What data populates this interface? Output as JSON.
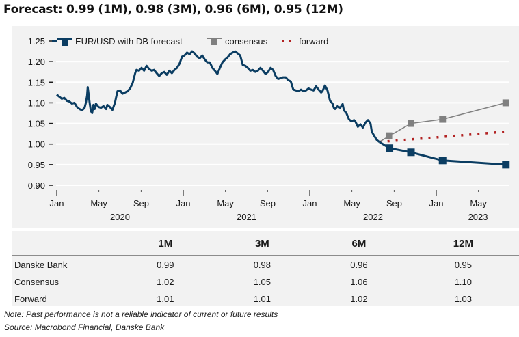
{
  "title": "Forecast: 0.99  (1M), 0.98  (3M), 0.96 (6M), 0.95 (12M)",
  "chart_data": {
    "type": "line",
    "title": "",
    "xlabel": "",
    "ylabel": "",
    "ylim": [
      0.9,
      1.25
    ],
    "yticks": [
      "1.25",
      "1.20",
      "1.15",
      "1.10",
      "1.05",
      "1.00",
      "0.95",
      "0.90"
    ],
    "ytick_values": [
      1.25,
      1.2,
      1.15,
      1.1,
      1.05,
      1.0,
      0.95,
      0.9
    ],
    "xlim": [
      "2020-01",
      "2023-08"
    ],
    "xticks": [
      {
        "label": "Jan",
        "t": 2020.0,
        "major": true
      },
      {
        "label": "May",
        "t": 2020.333,
        "major": false
      },
      {
        "label": "Sep",
        "t": 2020.667,
        "major": false
      },
      {
        "label": "Jan",
        "t": 2021.0,
        "major": true
      },
      {
        "label": "May",
        "t": 2021.333,
        "major": false
      },
      {
        "label": "Sep",
        "t": 2021.667,
        "major": false
      },
      {
        "label": "Jan",
        "t": 2022.0,
        "major": true
      },
      {
        "label": "May",
        "t": 2022.333,
        "major": false
      },
      {
        "label": "Sep",
        "t": 2022.667,
        "major": false
      },
      {
        "label": "Jan",
        "t": 2023.0,
        "major": true
      },
      {
        "label": "May",
        "t": 2023.333,
        "major": false
      }
    ],
    "year_labels": [
      {
        "label": "2020",
        "t": 2020.5
      },
      {
        "label": "2021",
        "t": 2021.5
      },
      {
        "label": "2022",
        "t": 2022.5
      },
      {
        "label": "2023",
        "t": 2023.33
      }
    ],
    "grid": true,
    "legend": {
      "placement": "top-left",
      "entries": [
        {
          "label": "EUR/USD with DB forecast",
          "color": "#0b3d62",
          "style": "line-square"
        },
        {
          "label": "consensus",
          "color": "#808080",
          "style": "line-square"
        },
        {
          "label": "forward",
          "color": "#b22222",
          "style": "dotted"
        }
      ]
    },
    "series": [
      {
        "name": "EUR/USD history",
        "color": "#0b3d62",
        "points": [
          [
            2020.0,
            1.12
          ],
          [
            2020.02,
            1.115
          ],
          [
            2020.04,
            1.11
          ],
          [
            2020.06,
            1.112
          ],
          [
            2020.08,
            1.105
          ],
          [
            2020.1,
            1.103
          ],
          [
            2020.12,
            1.098
          ],
          [
            2020.14,
            1.1
          ],
          [
            2020.16,
            1.09
          ],
          [
            2020.18,
            1.085
          ],
          [
            2020.2,
            1.082
          ],
          [
            2020.22,
            1.088
          ],
          [
            2020.23,
            1.1
          ],
          [
            2020.24,
            1.118
          ],
          [
            2020.245,
            1.138
          ],
          [
            2020.25,
            1.125
          ],
          [
            2020.26,
            1.1
          ],
          [
            2020.27,
            1.08
          ],
          [
            2020.28,
            1.075
          ],
          [
            2020.29,
            1.095
          ],
          [
            2020.3,
            1.085
          ],
          [
            2020.31,
            1.098
          ],
          [
            2020.33,
            1.09
          ],
          [
            2020.35,
            1.088
          ],
          [
            2020.37,
            1.092
          ],
          [
            2020.39,
            1.085
          ],
          [
            2020.4,
            1.095
          ],
          [
            2020.42,
            1.09
          ],
          [
            2020.44,
            1.083
          ],
          [
            2020.46,
            1.1
          ],
          [
            2020.47,
            1.115
          ],
          [
            2020.48,
            1.128
          ],
          [
            2020.5,
            1.13
          ],
          [
            2020.52,
            1.122
          ],
          [
            2020.54,
            1.125
          ],
          [
            2020.56,
            1.128
          ],
          [
            2020.58,
            1.135
          ],
          [
            2020.6,
            1.148
          ],
          [
            2020.62,
            1.172
          ],
          [
            2020.63,
            1.18
          ],
          [
            2020.65,
            1.178
          ],
          [
            2020.67,
            1.185
          ],
          [
            2020.69,
            1.178
          ],
          [
            2020.71,
            1.19
          ],
          [
            2020.73,
            1.182
          ],
          [
            2020.75,
            1.178
          ],
          [
            2020.77,
            1.18
          ],
          [
            2020.79,
            1.172
          ],
          [
            2020.81,
            1.165
          ],
          [
            2020.83,
            1.172
          ],
          [
            2020.85,
            1.175
          ],
          [
            2020.87,
            1.168
          ],
          [
            2020.89,
            1.178
          ],
          [
            2020.91,
            1.172
          ],
          [
            2020.93,
            1.18
          ],
          [
            2020.95,
            1.185
          ],
          [
            2020.97,
            1.195
          ],
          [
            2020.99,
            1.212
          ],
          [
            2021.01,
            1.215
          ],
          [
            2021.03,
            1.222
          ],
          [
            2021.05,
            1.218
          ],
          [
            2021.07,
            1.225
          ],
          [
            2021.09,
            1.22
          ],
          [
            2021.11,
            1.212
          ],
          [
            2021.13,
            1.208
          ],
          [
            2021.15,
            1.215
          ],
          [
            2021.17,
            1.205
          ],
          [
            2021.19,
            1.198
          ],
          [
            2021.21,
            1.198
          ],
          [
            2021.23,
            1.185
          ],
          [
            2021.25,
            1.178
          ],
          [
            2021.27,
            1.17
          ],
          [
            2021.29,
            1.185
          ],
          [
            2021.31,
            1.198
          ],
          [
            2021.33,
            1.205
          ],
          [
            2021.35,
            1.21
          ],
          [
            2021.37,
            1.218
          ],
          [
            2021.39,
            1.222
          ],
          [
            2021.41,
            1.225
          ],
          [
            2021.43,
            1.22
          ],
          [
            2021.45,
            1.215
          ],
          [
            2021.47,
            1.192
          ],
          [
            2021.49,
            1.19
          ],
          [
            2021.51,
            1.185
          ],
          [
            2021.53,
            1.178
          ],
          [
            2021.55,
            1.18
          ],
          [
            2021.57,
            1.175
          ],
          [
            2021.59,
            1.178
          ],
          [
            2021.61,
            1.185
          ],
          [
            2021.63,
            1.178
          ],
          [
            2021.65,
            1.17
          ],
          [
            2021.67,
            1.175
          ],
          [
            2021.69,
            1.185
          ],
          [
            2021.71,
            1.18
          ],
          [
            2021.73,
            1.165
          ],
          [
            2021.75,
            1.158
          ],
          [
            2021.77,
            1.16
          ],
          [
            2021.79,
            1.162
          ],
          [
            2021.81,
            1.162
          ],
          [
            2021.83,
            1.155
          ],
          [
            2021.85,
            1.152
          ],
          [
            2021.87,
            1.132
          ],
          [
            2021.89,
            1.13
          ],
          [
            2021.91,
            1.128
          ],
          [
            2021.93,
            1.132
          ],
          [
            2021.95,
            1.128
          ],
          [
            2021.97,
            1.13
          ],
          [
            2021.99,
            1.135
          ],
          [
            2022.01,
            1.132
          ],
          [
            2022.03,
            1.13
          ],
          [
            2022.05,
            1.14
          ],
          [
            2022.07,
            1.132
          ],
          [
            2022.09,
            1.125
          ],
          [
            2022.1,
            1.128
          ],
          [
            2022.12,
            1.142
          ],
          [
            2022.14,
            1.13
          ],
          [
            2022.16,
            1.105
          ],
          [
            2022.18,
            1.098
          ],
          [
            2022.19,
            1.088
          ],
          [
            2022.2,
            1.085
          ],
          [
            2022.22,
            1.092
          ],
          [
            2022.24,
            1.088
          ],
          [
            2022.26,
            1.097
          ],
          [
            2022.27,
            1.082
          ],
          [
            2022.29,
            1.075
          ],
          [
            2022.31,
            1.06
          ],
          [
            2022.33,
            1.055
          ],
          [
            2022.35,
            1.058
          ],
          [
            2022.36,
            1.055
          ],
          [
            2022.38,
            1.042
          ],
          [
            2022.4,
            1.048
          ],
          [
            2022.42,
            1.04
          ],
          [
            2022.44,
            1.052
          ],
          [
            2022.46,
            1.058
          ],
          [
            2022.48,
            1.05
          ],
          [
            2022.49,
            1.03
          ],
          [
            2022.51,
            1.02
          ],
          [
            2022.53,
            1.01
          ],
          [
            2022.55,
            1.005
          ]
        ]
      },
      {
        "name": "EUR/USD with DB forecast",
        "color": "#0b3d62",
        "categories": [
          "1M",
          "3M",
          "6M",
          "12M"
        ],
        "points": [
          [
            2022.55,
            1.005
          ],
          [
            2022.63,
            0.99
          ],
          [
            2022.8,
            0.98
          ],
          [
            2023.05,
            0.96
          ],
          [
            2023.55,
            0.95
          ]
        ]
      },
      {
        "name": "consensus",
        "color": "#808080",
        "categories": [
          "1M",
          "3M",
          "6M",
          "12M"
        ],
        "points": [
          [
            2022.55,
            1.005
          ],
          [
            2022.63,
            1.02
          ],
          [
            2022.8,
            1.05
          ],
          [
            2023.05,
            1.06
          ],
          [
            2023.55,
            1.1
          ]
        ]
      },
      {
        "name": "forward",
        "color": "#b22222",
        "points": [
          [
            2022.55,
            1.005
          ],
          [
            2023.55,
            1.03
          ]
        ]
      }
    ]
  },
  "table": {
    "headers": [
      "",
      "1M",
      "3M",
      "6M",
      "12M"
    ],
    "rows": [
      {
        "label": "Danske Bank",
        "values": [
          "0.99",
          "0.98",
          "0.96",
          "0.95"
        ]
      },
      {
        "label": "Consensus",
        "values": [
          "1.02",
          "1.05",
          "1.06",
          "1.10"
        ]
      },
      {
        "label": "Forward",
        "values": [
          "1.01",
          "1.01",
          "1.02",
          "1.03"
        ]
      }
    ]
  },
  "notes": {
    "note": "Note: Past performance is not a reliable indicator of current or future results",
    "source": "Source: Macrobond Financial, Danske Bank"
  }
}
